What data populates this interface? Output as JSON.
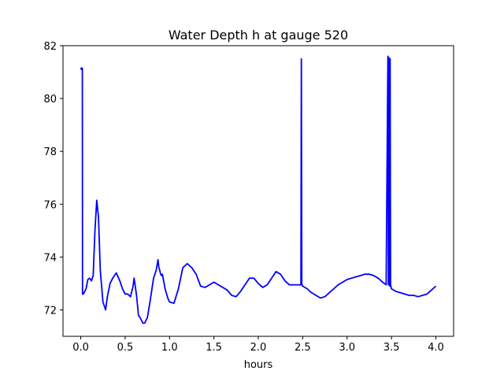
{
  "chart_data": {
    "type": "line",
    "title": "Water Depth h at gauge 520",
    "xlabel": "hours",
    "ylabel": "",
    "xlim": [
      -0.2,
      4.2
    ],
    "ylim": [
      71.0,
      82.0
    ],
    "grid": false,
    "x_ticks": [
      0.0,
      0.5,
      1.0,
      1.5,
      2.0,
      2.5,
      3.0,
      3.5,
      4.0
    ],
    "x_tick_labels": [
      "0.0",
      "0.5",
      "1.0",
      "1.5",
      "2.0",
      "2.5",
      "3.0",
      "3.5",
      "4.0"
    ],
    "y_ticks": [
      72,
      74,
      76,
      78,
      80,
      82
    ],
    "y_tick_labels": [
      "72",
      "74",
      "76",
      "78",
      "80",
      "82"
    ],
    "series": [
      {
        "color": "#0000ff",
        "x": [
          0.0,
          0.005,
          0.01,
          0.012,
          0.018,
          0.02,
          0.022,
          0.03,
          0.06,
          0.08,
          0.1,
          0.12,
          0.14,
          0.16,
          0.18,
          0.2,
          0.22,
          0.25,
          0.28,
          0.3,
          0.33,
          0.36,
          0.4,
          0.44,
          0.47,
          0.5,
          0.53,
          0.56,
          0.59,
          0.6,
          0.61,
          0.63,
          0.65,
          0.67,
          0.7,
          0.72,
          0.75,
          0.78,
          0.82,
          0.85,
          0.87,
          0.88,
          0.89,
          0.9,
          0.91,
          0.92,
          0.95,
          0.98,
          1.0,
          1.05,
          1.1,
          1.15,
          1.2,
          1.25,
          1.3,
          1.35,
          1.4,
          1.45,
          1.5,
          1.55,
          1.6,
          1.65,
          1.7,
          1.75,
          1.8,
          1.85,
          1.9,
          1.95,
          2.0,
          2.05,
          2.1,
          2.15,
          2.2,
          2.25,
          2.3,
          2.35,
          2.4,
          2.45,
          2.48,
          2.485,
          2.49,
          2.5,
          2.55,
          2.6,
          2.65,
          2.7,
          2.75,
          2.8,
          2.85,
          2.9,
          2.95,
          3.0,
          3.05,
          3.1,
          3.15,
          3.2,
          3.25,
          3.3,
          3.35,
          3.4,
          3.44,
          3.46,
          3.465,
          3.47,
          3.475,
          3.48,
          3.485,
          3.49,
          3.5,
          3.55,
          3.6,
          3.65,
          3.7,
          3.75,
          3.8,
          3.85,
          3.9,
          3.95,
          4.0
        ],
        "values": [
          81.1,
          81.15,
          81.1,
          81.15,
          81.15,
          72.6,
          72.6,
          72.6,
          72.8,
          73.15,
          73.2,
          73.1,
          73.3,
          75.0,
          76.15,
          75.5,
          73.5,
          72.3,
          72.0,
          72.5,
          73.0,
          73.2,
          73.4,
          73.1,
          72.8,
          72.6,
          72.6,
          72.5,
          72.9,
          73.2,
          73.0,
          72.5,
          71.8,
          71.7,
          71.5,
          71.5,
          71.7,
          72.3,
          73.2,
          73.5,
          73.9,
          73.6,
          73.5,
          73.35,
          73.3,
          73.35,
          72.8,
          72.45,
          72.3,
          72.25,
          72.8,
          73.6,
          73.75,
          73.6,
          73.35,
          72.9,
          72.85,
          72.95,
          73.05,
          72.95,
          72.85,
          72.75,
          72.55,
          72.5,
          72.7,
          72.95,
          73.2,
          73.2,
          73.0,
          72.85,
          72.95,
          73.2,
          73.45,
          73.35,
          73.1,
          72.95,
          72.95,
          72.95,
          72.95,
          81.5,
          72.95,
          72.9,
          72.8,
          72.65,
          72.55,
          72.45,
          72.5,
          72.65,
          72.8,
          72.95,
          73.05,
          73.15,
          73.2,
          73.25,
          73.3,
          73.35,
          73.35,
          73.3,
          73.2,
          73.05,
          72.95,
          81.6,
          72.95,
          81.55,
          81.5,
          72.9,
          81.5,
          72.95,
          72.8,
          72.7,
          72.65,
          72.6,
          72.55,
          72.55,
          72.5,
          72.55,
          72.6,
          72.75,
          72.9
        ]
      }
    ]
  }
}
